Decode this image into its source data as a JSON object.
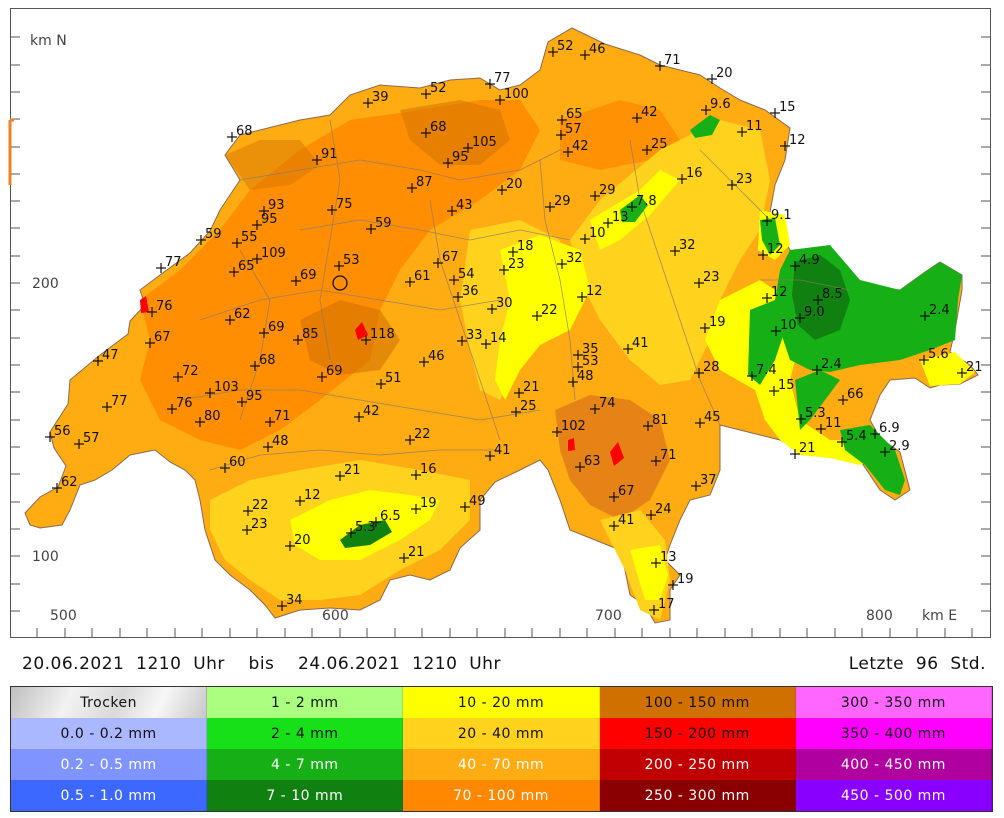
{
  "map": {
    "north_label": "km N",
    "east_label": "km E",
    "x_ticks": [
      "500",
      "600",
      "700",
      "800"
    ],
    "y_ticks": [
      "200",
      "100"
    ],
    "stations": [
      {
        "label": "52",
        "x": 553,
        "y": 52
      },
      {
        "label": "46",
        "x": 585,
        "y": 55
      },
      {
        "label": "71",
        "x": 660,
        "y": 66
      },
      {
        "label": "20",
        "x": 712,
        "y": 79
      },
      {
        "label": "77",
        "x": 490,
        "y": 84
      },
      {
        "label": "52",
        "x": 426,
        "y": 94
      },
      {
        "label": "100",
        "x": 500,
        "y": 100
      },
      {
        "label": "39",
        "x": 368,
        "y": 103
      },
      {
        "label": "9.6",
        "x": 706,
        "y": 110
      },
      {
        "label": "15",
        "x": 775,
        "y": 113
      },
      {
        "label": "42",
        "x": 637,
        "y": 118
      },
      {
        "label": "65",
        "x": 562,
        "y": 120
      },
      {
        "label": "68",
        "x": 232,
        "y": 137
      },
      {
        "label": "68",
        "x": 426,
        "y": 133
      },
      {
        "label": "11",
        "x": 742,
        "y": 132
      },
      {
        "label": "57",
        "x": 561,
        "y": 135
      },
      {
        "label": "12",
        "x": 785,
        "y": 146
      },
      {
        "label": "105",
        "x": 468,
        "y": 148
      },
      {
        "label": "42",
        "x": 568,
        "y": 152
      },
      {
        "label": "25",
        "x": 647,
        "y": 150
      },
      {
        "label": "91",
        "x": 317,
        "y": 160
      },
      {
        "label": "95",
        "x": 448,
        "y": 163
      },
      {
        "label": "16",
        "x": 682,
        "y": 179
      },
      {
        "label": "23",
        "x": 732,
        "y": 185
      },
      {
        "label": "87",
        "x": 412,
        "y": 188
      },
      {
        "label": "20",
        "x": 502,
        "y": 190
      },
      {
        "label": "29",
        "x": 595,
        "y": 196
      },
      {
        "label": "29",
        "x": 550,
        "y": 207
      },
      {
        "label": "7.8",
        "x": 632,
        "y": 207
      },
      {
        "label": "93",
        "x": 264,
        "y": 211
      },
      {
        "label": "75",
        "x": 332,
        "y": 210
      },
      {
        "label": "43",
        "x": 452,
        "y": 211
      },
      {
        "label": "9.1",
        "x": 767,
        "y": 221
      },
      {
        "label": "95",
        "x": 257,
        "y": 225
      },
      {
        "label": "13",
        "x": 608,
        "y": 223
      },
      {
        "label": "59",
        "x": 371,
        "y": 229
      },
      {
        "label": "59",
        "x": 201,
        "y": 240
      },
      {
        "label": "55",
        "x": 237,
        "y": 243
      },
      {
        "label": "10",
        "x": 585,
        "y": 239
      },
      {
        "label": "32",
        "x": 675,
        "y": 251
      },
      {
        "label": "18",
        "x": 513,
        "y": 252
      },
      {
        "label": "109",
        "x": 257,
        "y": 259
      },
      {
        "label": "12",
        "x": 763,
        "y": 255
      },
      {
        "label": "4.9",
        "x": 795,
        "y": 266
      },
      {
        "label": "67",
        "x": 438,
        "y": 263
      },
      {
        "label": "53",
        "x": 339,
        "y": 266
      },
      {
        "label": "32",
        "x": 562,
        "y": 264
      },
      {
        "label": "23",
        "x": 504,
        "y": 270
      },
      {
        "label": "77",
        "x": 161,
        "y": 268
      },
      {
        "label": "65",
        "x": 234,
        "y": 272
      },
      {
        "label": "69",
        "x": 296,
        "y": 281
      },
      {
        "label": "54",
        "x": 454,
        "y": 280
      },
      {
        "label": "61",
        "x": 410,
        "y": 282
      },
      {
        "label": "23",
        "x": 699,
        "y": 283
      },
      {
        "label": "36",
        "x": 458,
        "y": 297
      },
      {
        "label": "12",
        "x": 582,
        "y": 297
      },
      {
        "label": "12",
        "x": 767,
        "y": 298
      },
      {
        "label": "8.5",
        "x": 818,
        "y": 300
      },
      {
        "label": "30",
        "x": 492,
        "y": 309
      },
      {
        "label": "76",
        "x": 152,
        "y": 312
      },
      {
        "label": "2.4",
        "x": 925,
        "y": 316
      },
      {
        "label": "22",
        "x": 537,
        "y": 316
      },
      {
        "label": "9.0",
        "x": 800,
        "y": 318
      },
      {
        "label": "62",
        "x": 230,
        "y": 320
      },
      {
        "label": "19",
        "x": 705,
        "y": 328
      },
      {
        "label": "10",
        "x": 776,
        "y": 331
      },
      {
        "label": "69",
        "x": 264,
        "y": 333
      },
      {
        "label": "85",
        "x": 298,
        "y": 340
      },
      {
        "label": "118",
        "x": 366,
        "y": 340
      },
      {
        "label": "33",
        "x": 462,
        "y": 341
      },
      {
        "label": "14",
        "x": 486,
        "y": 344
      },
      {
        "label": "67",
        "x": 150,
        "y": 343
      },
      {
        "label": "41",
        "x": 628,
        "y": 349
      },
      {
        "label": "35",
        "x": 578,
        "y": 355
      },
      {
        "label": "5.6",
        "x": 924,
        "y": 360
      },
      {
        "label": "47",
        "x": 98,
        "y": 361
      },
      {
        "label": "46",
        "x": 424,
        "y": 362
      },
      {
        "label": "53",
        "x": 578,
        "y": 367
      },
      {
        "label": "21",
        "x": 962,
        "y": 373
      },
      {
        "label": "28",
        "x": 699,
        "y": 373
      },
      {
        "label": "7.4",
        "x": 752,
        "y": 376
      },
      {
        "label": "2.4",
        "x": 817,
        "y": 370
      },
      {
        "label": "68",
        "x": 255,
        "y": 366
      },
      {
        "label": "72",
        "x": 178,
        "y": 377
      },
      {
        "label": "69",
        "x": 322,
        "y": 377
      },
      {
        "label": "48",
        "x": 573,
        "y": 382
      },
      {
        "label": "51",
        "x": 381,
        "y": 384
      },
      {
        "label": "103",
        "x": 210,
        "y": 393
      },
      {
        "label": "21",
        "x": 519,
        "y": 393
      },
      {
        "label": "15",
        "x": 774,
        "y": 391
      },
      {
        "label": "66",
        "x": 843,
        "y": 400
      },
      {
        "label": "95",
        "x": 242,
        "y": 402
      },
      {
        "label": "77",
        "x": 107,
        "y": 407
      },
      {
        "label": "76",
        "x": 172,
        "y": 409
      },
      {
        "label": "74",
        "x": 595,
        "y": 409
      },
      {
        "label": "25",
        "x": 516,
        "y": 412
      },
      {
        "label": "42",
        "x": 359,
        "y": 417
      },
      {
        "label": "5.3",
        "x": 801,
        "y": 419
      },
      {
        "label": "80",
        "x": 200,
        "y": 422
      },
      {
        "label": "71",
        "x": 270,
        "y": 422
      },
      {
        "label": "45",
        "x": 700,
        "y": 423
      },
      {
        "label": "81",
        "x": 648,
        "y": 426
      },
      {
        "label": "11",
        "x": 821,
        "y": 429
      },
      {
        "label": "102",
        "x": 557,
        "y": 432
      },
      {
        "label": "6.9",
        "x": 875,
        "y": 434
      },
      {
        "label": "56",
        "x": 50,
        "y": 437
      },
      {
        "label": "22",
        "x": 410,
        "y": 440
      },
      {
        "label": "5.4",
        "x": 842,
        "y": 442
      },
      {
        "label": "57",
        "x": 79,
        "y": 444
      },
      {
        "label": "48",
        "x": 268,
        "y": 447
      },
      {
        "label": "2.9",
        "x": 885,
        "y": 452
      },
      {
        "label": "21",
        "x": 795,
        "y": 454
      },
      {
        "label": "41",
        "x": 490,
        "y": 456
      },
      {
        "label": "71",
        "x": 656,
        "y": 461
      },
      {
        "label": "63",
        "x": 580,
        "y": 467
      },
      {
        "label": "60",
        "x": 225,
        "y": 468
      },
      {
        "label": "16",
        "x": 416,
        "y": 475
      },
      {
        "label": "21",
        "x": 340,
        "y": 476
      },
      {
        "label": "37",
        "x": 696,
        "y": 486
      },
      {
        "label": "62",
        "x": 57,
        "y": 488
      },
      {
        "label": "67",
        "x": 614,
        "y": 497
      },
      {
        "label": "12",
        "x": 300,
        "y": 501
      },
      {
        "label": "49",
        "x": 465,
        "y": 507
      },
      {
        "label": "19",
        "x": 416,
        "y": 509
      },
      {
        "label": "22",
        "x": 248,
        "y": 511
      },
      {
        "label": "24",
        "x": 651,
        "y": 515
      },
      {
        "label": "6.5",
        "x": 376,
        "y": 522
      },
      {
        "label": "41",
        "x": 614,
        "y": 526
      },
      {
        "label": "5.3",
        "x": 351,
        "y": 533
      },
      {
        "label": "23",
        "x": 247,
        "y": 530
      },
      {
        "label": "20",
        "x": 290,
        "y": 546
      },
      {
        "label": "21",
        "x": 404,
        "y": 558
      },
      {
        "label": "13",
        "x": 656,
        "y": 563
      },
      {
        "label": "19",
        "x": 673,
        "y": 585
      },
      {
        "label": "34",
        "x": 282,
        "y": 606
      },
      {
        "label": "17",
        "x": 654,
        "y": 610
      }
    ]
  },
  "period": {
    "range_text": "20.06.2021  1210  Uhr    bis    24.06.2021  1210  Uhr",
    "window_text": "Letzte  96  Std."
  },
  "legend": [
    {
      "label": "Trocken",
      "color": "#e6e6e6",
      "text_color": "#111111",
      "dry": true
    },
    {
      "label": "0.0 - 0.2 mm",
      "color": "#aab8ff",
      "text_color": "#111111"
    },
    {
      "label": "0.2 - 0.5 mm",
      "color": "#7f94ff",
      "text_color": "#ffffff"
    },
    {
      "label": "0.5 - 1.0 mm",
      "color": "#3c68ff",
      "text_color": "#ffffff"
    },
    {
      "label": "1 - 2 mm",
      "color": "#aaff7f",
      "text_color": "#111111"
    },
    {
      "label": "2 - 4 mm",
      "color": "#18e018",
      "text_color": "#111111"
    },
    {
      "label": "4 - 7 mm",
      "color": "#16b016",
      "text_color": "#ffffff"
    },
    {
      "label": "7 - 10 mm",
      "color": "#108010",
      "text_color": "#ffffff"
    },
    {
      "label": "10 - 20 mm",
      "color": "#ffff00",
      "text_color": "#111111"
    },
    {
      "label": "20 - 40 mm",
      "color": "#ffd21e",
      "text_color": "#111111"
    },
    {
      "label": "40 - 70 mm",
      "color": "#ffab12",
      "text_color": "#ffffff"
    },
    {
      "label": "70 - 100 mm",
      "color": "#ff8800",
      "text_color": "#ffffff"
    },
    {
      "label": "100 - 150 mm",
      "color": "#d07000",
      "text_color": "#111111"
    },
    {
      "label": "150 - 200 mm",
      "color": "#ff0000",
      "text_color": "#111111"
    },
    {
      "label": "200 - 250 mm",
      "color": "#c00000",
      "text_color": "#ffffff"
    },
    {
      "label": "250 - 300 mm",
      "color": "#8a0000",
      "text_color": "#ffffff"
    },
    {
      "label": "300 - 350 mm",
      "color": "#ff66ff",
      "text_color": "#111111"
    },
    {
      "label": "350 - 400 mm",
      "color": "#ff00ff",
      "text_color": "#111111"
    },
    {
      "label": "400 - 450 mm",
      "color": "#b0009f",
      "text_color": "#ffffff"
    },
    {
      "label": "450 - 500 mm",
      "color": "#8a00ff",
      "text_color": "#ffffff"
    }
  ]
}
